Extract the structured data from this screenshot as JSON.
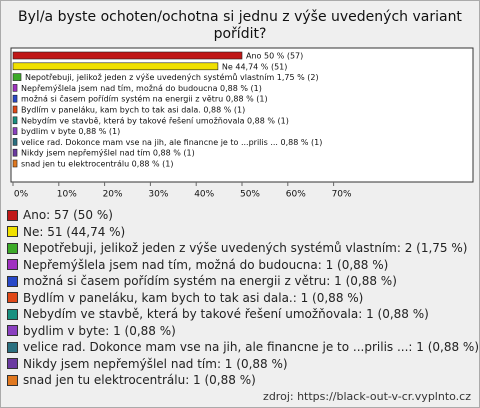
{
  "chart_data": {
    "type": "bar",
    "orientation": "horizontal",
    "title": "Byl/a byste ochoten/ochotna si jednu z výše uvedených variant pořídit?",
    "categories": [
      "Ano",
      "Ne",
      "Nepotřebuji, jelikož jeden z výše uvedených systémů vlastním",
      "Nepřemýšlela jsem nad tím, možná do budoucna",
      "možná si časem pořídím systém na energii z větru",
      "Bydlím v paneláku, kam bych to tak asi dala.",
      "Nebydím ve stavbě, která by takové řešení umožňovala",
      "bydlim v byte",
      "velice rad. Dokonce mam vse na jih, ale financne je to ...prilis ...",
      "Nikdy jsem nepřemýšlel nad tím",
      "snad jen tu elektrocentrálu"
    ],
    "values": [
      50,
      44.74,
      1.75,
      0.88,
      0.88,
      0.88,
      0.88,
      0.88,
      0.88,
      0.88,
      0.88
    ],
    "value_labels": [
      "Ano 50 % (57)",
      "Ne 44,74 % (51)",
      "Nepotřebuji, jelikož jeden z výše uvedených systémů vlastním 1,75 % (2)",
      "Nepřemýšlela jsem nad tím, možná do budoucna 0,88 % (1)",
      "možná si časem pořídím systém na energii z větru 0,88 % (1)",
      "Bydlím v paneláku, kam bych to tak asi dala. 0,88 % (1)",
      "Nebydím ve stavbě, která by takové řešení umožňovala 0,88 % (1)",
      "bydlim v byte 0,88 % (1)",
      "velice rad. Dokonce mam vse na jih, ale financne je to ...prilis ... 0,88 % (1)",
      "Nikdy jsem nepřemýšlel nad tím 0,88 % (1)",
      "snad jen tu elektrocentrálu 0,88 % (1)"
    ],
    "legend": [
      "Ano: 57 (50 %)",
      "Ne: 51 (44,74 %)",
      "Nepotřebuji, jelikož jeden z výše uvedených systémů vlastním: 2 (1,75 %)",
      "Nepřemýšlela jsem nad tím, možná do budoucna: 1 (0,88 %)",
      "možná si časem pořídím systém na energii z větru: 1 (0,88 %)",
      "Bydlím v paneláku, kam bych to tak asi dala.: 1 (0,88 %)",
      "Nebydím ve stavbě, která by takové řešení umožňovala: 1 (0,88 %)",
      "bydlim v byte: 1 (0,88 %)",
      "velice rad. Dokonce mam vse na jih, ale financne je to ...prilis ...: 1 (0,88 %)",
      "Nikdy jsem nepřemýšlel nad tím: 1 (0,88 %)",
      "snad jen tu elektrocentrálu: 1 (0,88 %)"
    ],
    "colors": [
      "#c01818",
      "#f0e000",
      "#3caa28",
      "#a030c0",
      "#2848c8",
      "#e04818",
      "#189080",
      "#8a40c0",
      "#2a7080",
      "#6a3aa0",
      "#e07820"
    ],
    "xlim": [
      0,
      100
    ],
    "xticks": [
      {
        "value": 0,
        "label": "0%"
      },
      {
        "value": 10,
        "label": "10%"
      },
      {
        "value": 20,
        "label": "20%"
      },
      {
        "value": 30,
        "label": "30%"
      },
      {
        "value": 40,
        "label": "40%"
      },
      {
        "value": 50,
        "label": "50%"
      },
      {
        "value": 60,
        "label": "60%"
      },
      {
        "value": 70,
        "label": "70%"
      }
    ],
    "source": "zdroj: https://black-out-v-cr.vyplnto.cz"
  }
}
